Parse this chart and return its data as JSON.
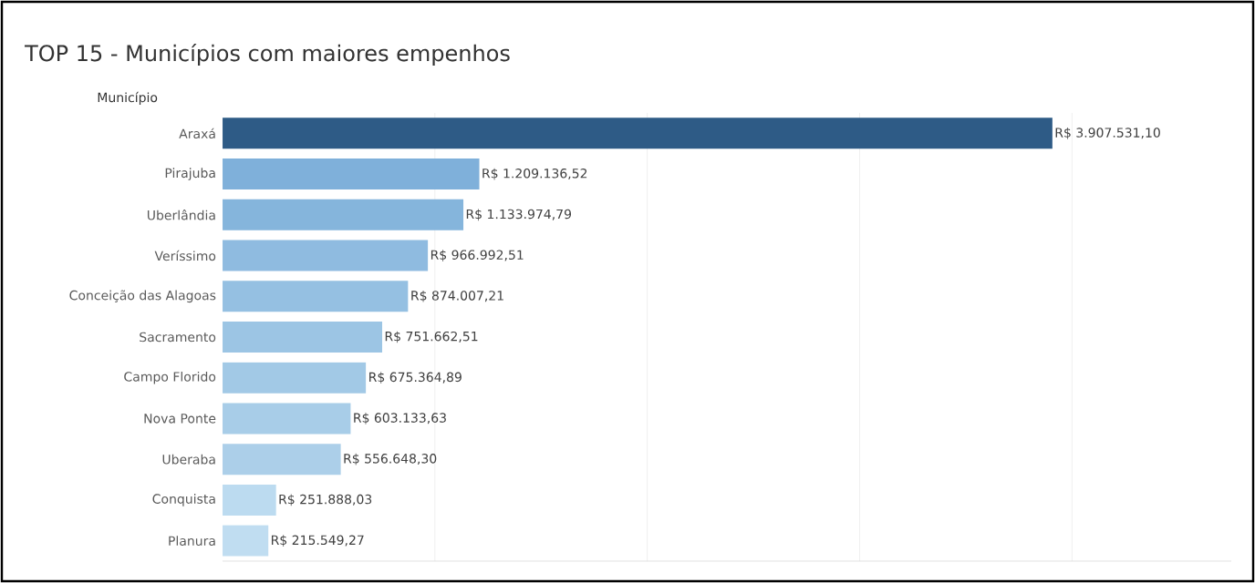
{
  "chart_data": {
    "type": "bar",
    "orientation": "horizontal",
    "title": "TOP 15 - Municípios com maiores empenhos",
    "ylabel": "Município",
    "categories": [
      "Araxá",
      "Pirajuba",
      "Uberlândia",
      "Veríssimo",
      "Conceição das Alagoas",
      "Sacramento",
      "Campo Florido",
      "Nova Ponte",
      "Uberaba",
      "Conquista",
      "Planura"
    ],
    "values": [
      3907531.1,
      1209136.52,
      1133974.79,
      966992.51,
      874007.21,
      751662.51,
      675364.89,
      603133.63,
      556648.3,
      251888.03,
      215549.27
    ],
    "value_labels": [
      "R$ 3.907.531,10",
      "R$ 1.209.136,52",
      "R$ 1.133.974,79",
      "R$ 966.992,51",
      "R$ 874.007,21",
      "R$ 751.662,51",
      "R$ 675.364,89",
      "R$ 603.133,63",
      "R$ 556.648,30",
      "R$ 251.888,03",
      "R$ 215.549,27"
    ],
    "colors": [
      "#2e5b86",
      "#7fb0da",
      "#85b5dc",
      "#8fbbe0",
      "#95c0e2",
      "#9cc5e4",
      "#a2c9e6",
      "#a8cde8",
      "#accfe9",
      "#bcdbf0",
      "#c0ddf1"
    ],
    "xlim": [
      0,
      4750000
    ],
    "xticks": [
      {
        "value": 1000000,
        "label": null
      },
      {
        "value": 2000000,
        "label": null
      },
      {
        "value": 3000000,
        "label": null
      },
      {
        "value": 4000000,
        "label": null
      }
    ],
    "grid": "x",
    "tick_labels": "y"
  }
}
